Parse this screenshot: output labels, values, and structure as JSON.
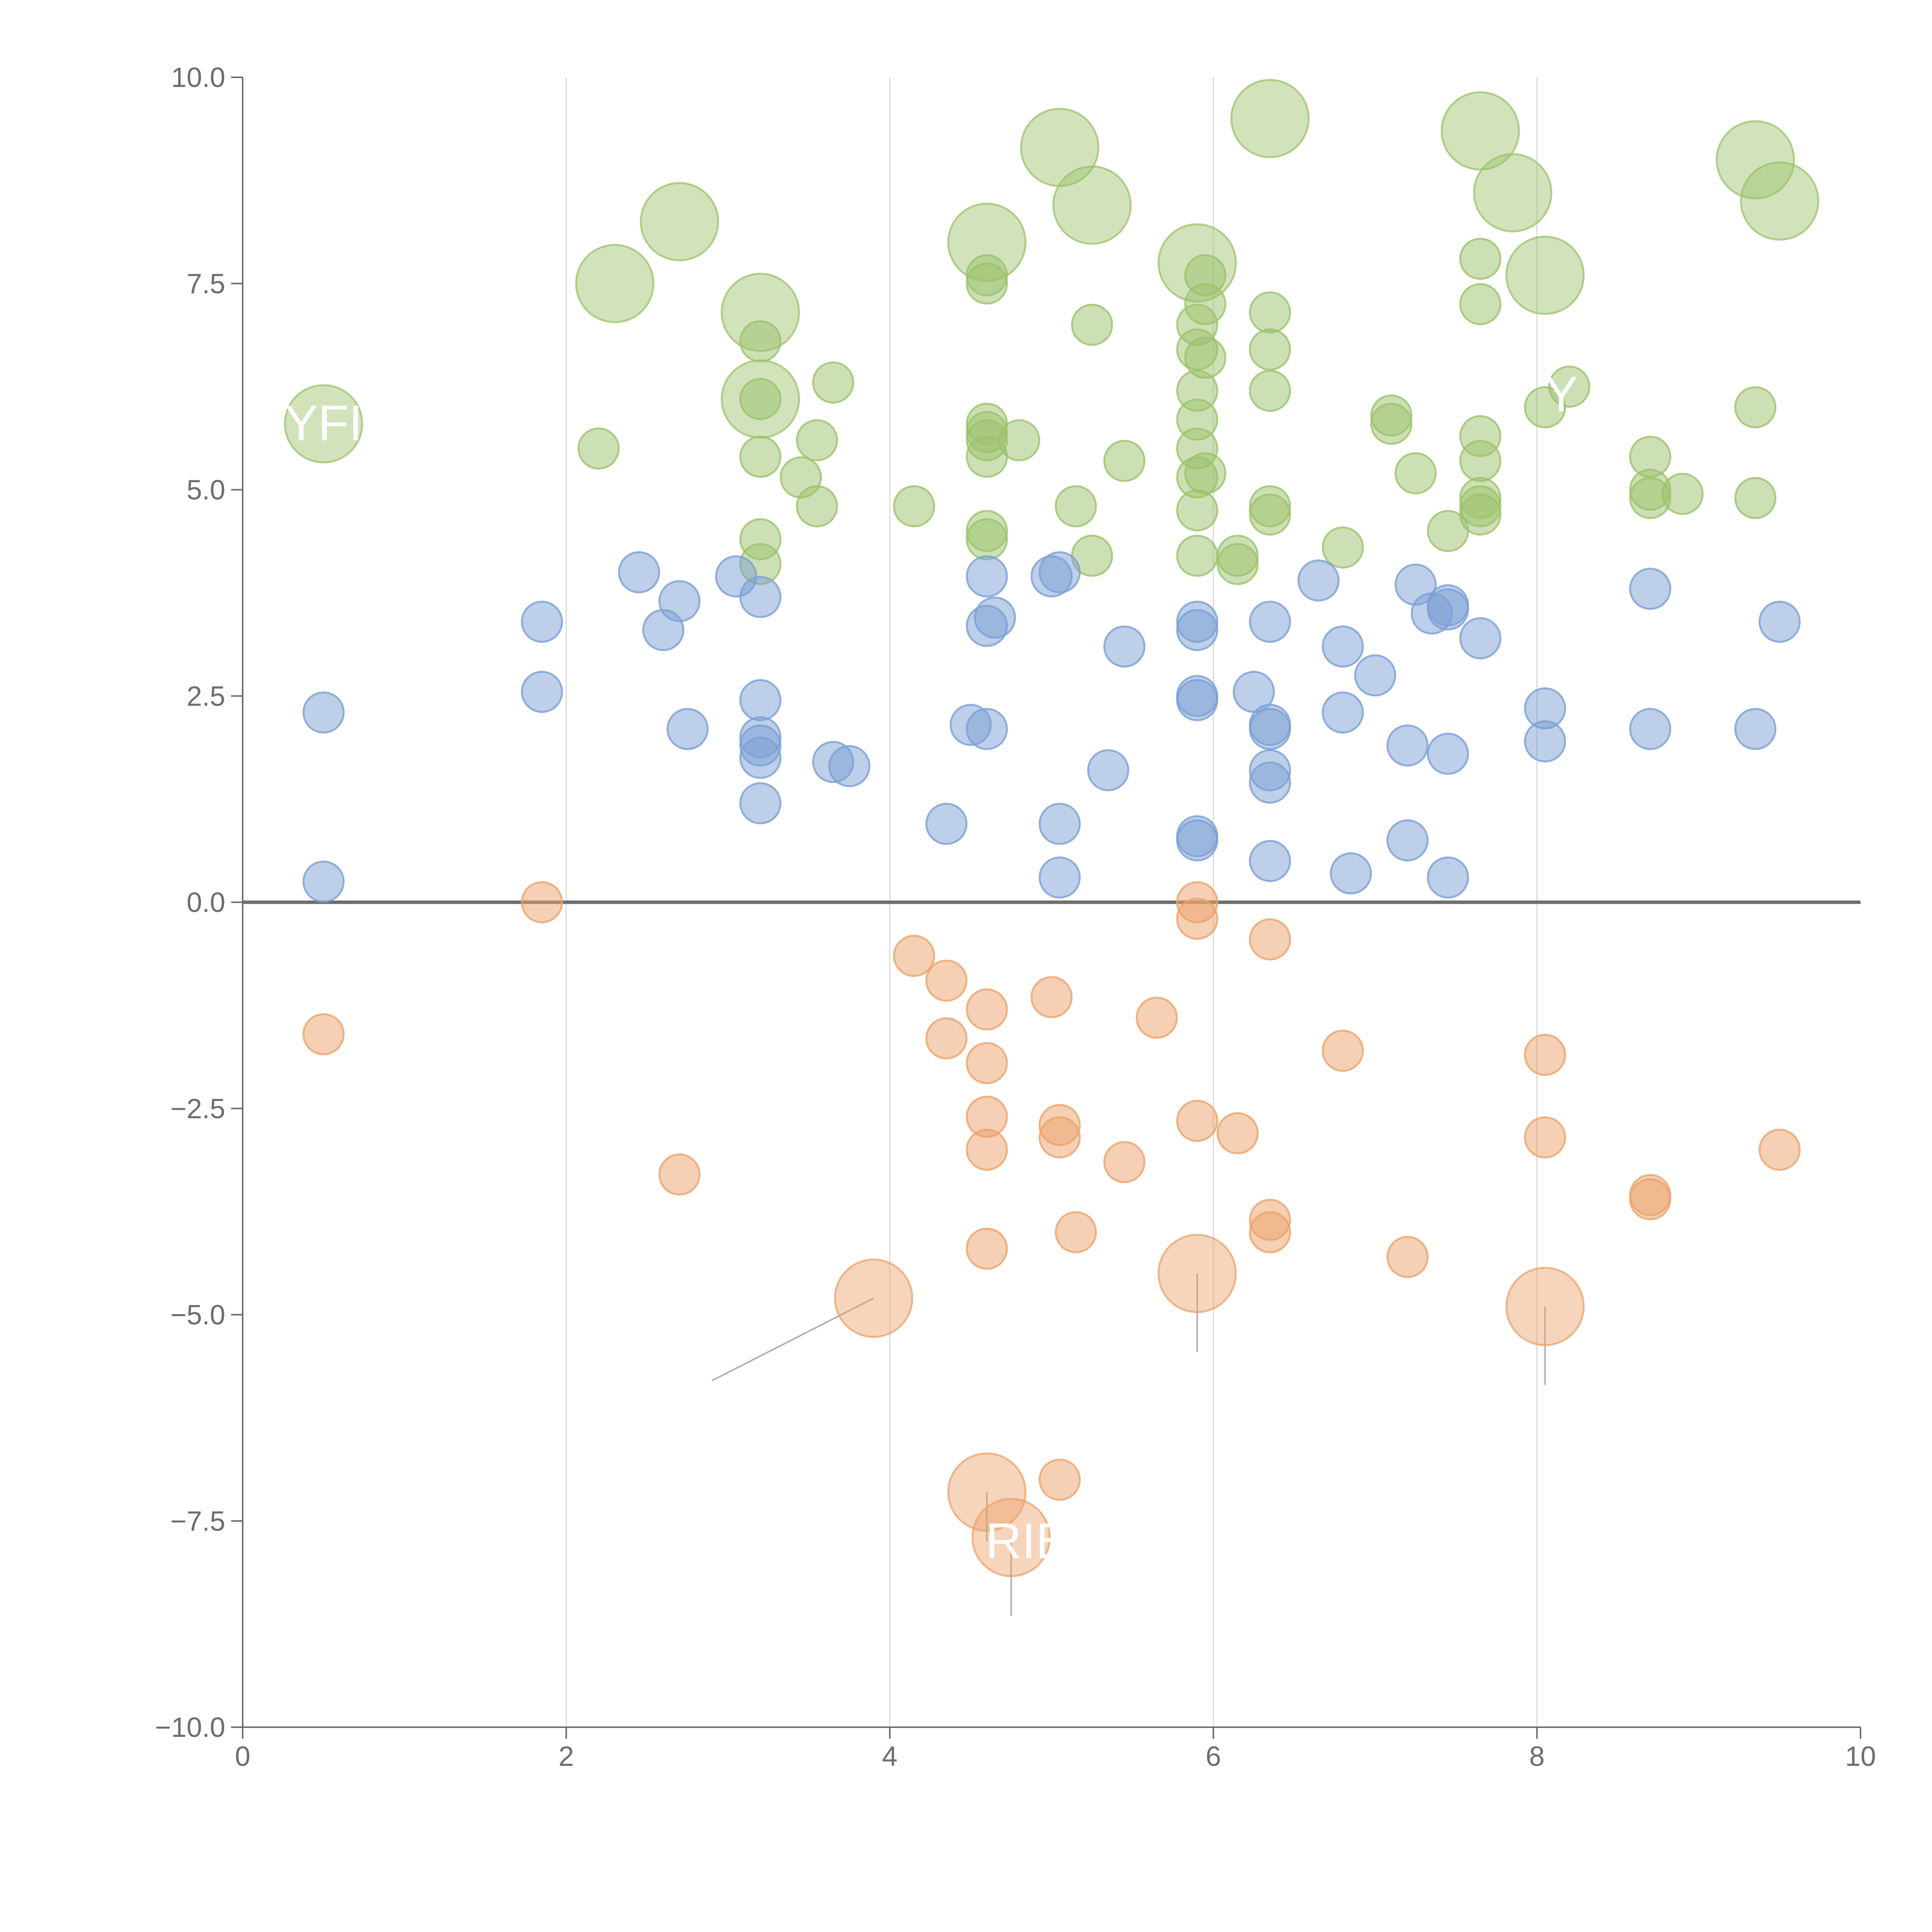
{
  "chart_data": {
    "type": "scatter",
    "title": "",
    "xlabel": "",
    "ylabel": "",
    "xlim": [
      0,
      10
    ],
    "ylim": [
      -10,
      10
    ],
    "x_ticks": [
      0,
      2,
      4,
      6,
      8,
      10
    ],
    "x_tick_labels": [
      "0",
      "2",
      "4",
      "6",
      "8",
      "10"
    ],
    "y_ticks": [
      -10,
      -7.5,
      -5,
      -2.5,
      0,
      2.5,
      5,
      7.5,
      10
    ],
    "y_tick_labels": [
      "−10.0",
      "−7.5",
      "−5.0",
      "−2.5",
      "0.0",
      "2.5",
      "5.0",
      "7.5",
      "10.0"
    ],
    "grid": "vertical",
    "reference_line_y": 0,
    "colors": {
      "green_series": "#9cc26b",
      "blue_series": "#7b9fd4",
      "orange_series": "#eba26a",
      "axis": "#6e6e6e",
      "grid": "#d9d9d9"
    },
    "series": [
      {
        "name": "green",
        "color": "#9cc26b",
        "points": [
          [
            2.2,
            5.5
          ],
          [
            3.2,
            4.4
          ],
          [
            3.2,
            4.1
          ],
          [
            3.2,
            5.4
          ],
          [
            3.2,
            6.1
          ],
          [
            3.2,
            6.8
          ],
          [
            3.45,
            5.15
          ],
          [
            3.55,
            5.6
          ],
          [
            3.55,
            4.8
          ],
          [
            3.65,
            6.3
          ],
          [
            4.15,
            4.8
          ],
          [
            4.6,
            4.5
          ],
          [
            4.6,
            4.4
          ],
          [
            4.6,
            5.4
          ],
          [
            4.6,
            5.6
          ],
          [
            4.6,
            5.7
          ],
          [
            4.6,
            5.8
          ],
          [
            4.6,
            7.5
          ],
          [
            4.6,
            7.6
          ],
          [
            4.8,
            5.6
          ],
          [
            5.15,
            4.8
          ],
          [
            5.25,
            4.2
          ],
          [
            5.25,
            7.0
          ],
          [
            5.45,
            5.35
          ],
          [
            5.9,
            4.2
          ],
          [
            5.9,
            4.75
          ],
          [
            5.9,
            5.15
          ],
          [
            5.9,
            5.5
          ],
          [
            5.9,
            5.85
          ],
          [
            5.9,
            6.2
          ],
          [
            5.9,
            6.7
          ],
          [
            5.9,
            7.0
          ],
          [
            5.95,
            5.2
          ],
          [
            5.95,
            6.6
          ],
          [
            5.95,
            7.25
          ],
          [
            5.95,
            7.6
          ],
          [
            6.15,
            4.1
          ],
          [
            6.15,
            4.2
          ],
          [
            6.35,
            4.7
          ],
          [
            6.35,
            4.8
          ],
          [
            6.35,
            6.2
          ],
          [
            6.35,
            6.7
          ],
          [
            6.35,
            7.15
          ],
          [
            6.8,
            4.3
          ],
          [
            7.1,
            5.8
          ],
          [
            7.1,
            5.9
          ],
          [
            7.25,
            5.2
          ],
          [
            7.45,
            4.5
          ],
          [
            7.65,
            4.7
          ],
          [
            7.65,
            4.8
          ],
          [
            7.65,
            4.9
          ],
          [
            7.65,
            5.35
          ],
          [
            7.65,
            5.65
          ],
          [
            7.65,
            7.25
          ],
          [
            7.65,
            7.8
          ],
          [
            8.05,
            6.0
          ],
          [
            8.2,
            6.25
          ],
          [
            8.7,
            4.9
          ],
          [
            8.7,
            5.0
          ],
          [
            8.7,
            5.4
          ],
          [
            8.9,
            4.95
          ],
          [
            9.35,
            4.9
          ],
          [
            9.35,
            6.0
          ]
        ],
        "large_points": [
          [
            0.5,
            5.8
          ],
          [
            2.3,
            7.5
          ],
          [
            2.7,
            8.25
          ],
          [
            3.2,
            6.1
          ],
          [
            3.2,
            7.15
          ],
          [
            4.6,
            8.0
          ],
          [
            5.05,
            9.15
          ],
          [
            5.25,
            8.45
          ],
          [
            5.9,
            7.75
          ],
          [
            6.35,
            9.5
          ],
          [
            7.65,
            9.35
          ],
          [
            7.85,
            8.6
          ],
          [
            8.05,
            7.6
          ],
          [
            9.35,
            9.0
          ],
          [
            9.5,
            8.5
          ]
        ]
      },
      {
        "name": "blue",
        "color": "#7b9fd4",
        "points": [
          [
            0.5,
            2.3
          ],
          [
            0.5,
            0.25
          ],
          [
            1.85,
            3.4
          ],
          [
            1.85,
            2.55
          ],
          [
            2.45,
            4.0
          ],
          [
            2.6,
            3.3
          ],
          [
            2.7,
            3.65
          ],
          [
            2.75,
            2.1
          ],
          [
            3.05,
            3.95
          ],
          [
            3.2,
            3.7
          ],
          [
            3.2,
            2.45
          ],
          [
            3.2,
            2.0
          ],
          [
            3.2,
            1.9
          ],
          [
            3.2,
            1.75
          ],
          [
            3.2,
            1.2
          ],
          [
            3.65,
            1.7
          ],
          [
            3.75,
            1.65
          ],
          [
            4.35,
            0.95
          ],
          [
            4.5,
            2.15
          ],
          [
            4.6,
            2.1
          ],
          [
            4.6,
            3.95
          ],
          [
            4.6,
            3.35
          ],
          [
            4.65,
            3.45
          ],
          [
            5.0,
            3.95
          ],
          [
            5.05,
            4.0
          ],
          [
            5.05,
            0.95
          ],
          [
            5.05,
            0.3
          ],
          [
            5.35,
            1.6
          ],
          [
            5.45,
            3.1
          ],
          [
            5.9,
            3.4
          ],
          [
            5.9,
            3.3
          ],
          [
            5.9,
            2.5
          ],
          [
            5.9,
            2.45
          ],
          [
            5.9,
            0.8
          ],
          [
            5.9,
            0.75
          ],
          [
            6.25,
            2.55
          ],
          [
            6.35,
            3.4
          ],
          [
            6.35,
            2.15
          ],
          [
            6.35,
            2.1
          ],
          [
            6.35,
            1.6
          ],
          [
            6.35,
            1.45
          ],
          [
            6.35,
            0.5
          ],
          [
            6.65,
            3.9
          ],
          [
            6.8,
            3.1
          ],
          [
            6.8,
            2.3
          ],
          [
            6.85,
            0.35
          ],
          [
            7.0,
            2.75
          ],
          [
            7.25,
            3.85
          ],
          [
            7.2,
            1.9
          ],
          [
            7.2,
            0.75
          ],
          [
            7.35,
            3.5
          ],
          [
            7.45,
            3.6
          ],
          [
            7.45,
            3.55
          ],
          [
            7.45,
            1.8
          ],
          [
            7.45,
            0.3
          ],
          [
            7.65,
            3.2
          ],
          [
            8.05,
            2.35
          ],
          [
            8.05,
            1.95
          ],
          [
            8.7,
            3.8
          ],
          [
            8.7,
            2.1
          ],
          [
            9.35,
            2.1
          ],
          [
            9.5,
            3.4
          ]
        ],
        "large_points": []
      },
      {
        "name": "orange",
        "color": "#eba26a",
        "points": [
          [
            0.5,
            -1.6
          ],
          [
            1.85,
            0.0
          ],
          [
            2.7,
            -3.3
          ],
          [
            4.15,
            -0.65
          ],
          [
            4.35,
            -0.95
          ],
          [
            4.35,
            -1.65
          ],
          [
            4.6,
            -1.3
          ],
          [
            4.6,
            -1.95
          ],
          [
            4.6,
            -2.6
          ],
          [
            4.6,
            -3.0
          ],
          [
            4.6,
            -4.2
          ],
          [
            5.0,
            -1.15
          ],
          [
            5.05,
            -2.7
          ],
          [
            5.05,
            -2.85
          ],
          [
            5.05,
            -7.0
          ],
          [
            5.15,
            -4.0
          ],
          [
            5.45,
            -3.15
          ],
          [
            5.65,
            -1.4
          ],
          [
            5.9,
            0.0
          ],
          [
            5.9,
            -0.2
          ],
          [
            5.9,
            -2.65
          ],
          [
            6.15,
            -2.8
          ],
          [
            6.35,
            -0.45
          ],
          [
            6.35,
            -3.85
          ],
          [
            6.35,
            -4.0
          ],
          [
            6.8,
            -1.8
          ],
          [
            7.2,
            -4.3
          ],
          [
            8.05,
            -1.85
          ],
          [
            8.05,
            -2.85
          ],
          [
            8.7,
            -3.55
          ],
          [
            8.7,
            -3.6
          ],
          [
            9.5,
            -3.0
          ]
        ],
        "large_points": [
          [
            3.9,
            -4.8
          ],
          [
            4.6,
            -7.15
          ],
          [
            4.75,
            -7.7
          ],
          [
            5.9,
            -4.5
          ],
          [
            8.05,
            -4.9
          ]
        ]
      }
    ],
    "annotations": [
      "YFI",
      "RIB",
      "Y"
    ]
  }
}
